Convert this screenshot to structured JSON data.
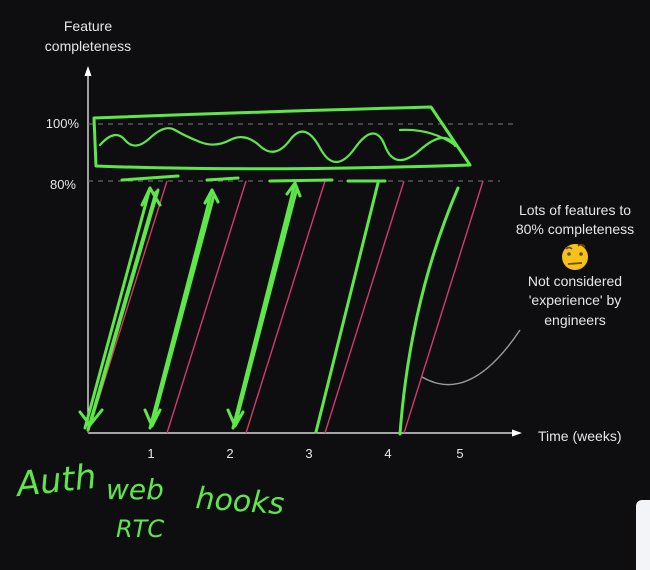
{
  "chart_data": {
    "type": "line",
    "ylabel_line1": "Feature",
    "ylabel_line2": "completeness",
    "xlabel": "Time (weeks)",
    "x_ticks": [
      "1",
      "2",
      "3",
      "4",
      "5"
    ],
    "y_ticks": [
      "80%",
      "100%"
    ],
    "xlim": [
      0,
      5.6
    ],
    "ylim": [
      0,
      130
    ],
    "reference_lines": [
      80,
      100
    ],
    "series": [
      {
        "x": [
          0,
          1
        ],
        "y": [
          0,
          80
        ]
      },
      {
        "x": [
          1,
          2
        ],
        "y": [
          0,
          80
        ]
      },
      {
        "x": [
          2,
          3
        ],
        "y": [
          0,
          80
        ]
      },
      {
        "x": [
          3,
          4
        ],
        "y": [
          0,
          80
        ]
      },
      {
        "x": [
          4,
          5
        ],
        "y": [
          0,
          80
        ]
      }
    ],
    "annotation_line1": "Lots of features to",
    "annotation_line2": "80% completeness",
    "annotation_line3": "Not considered",
    "annotation_line4": "'experience' by",
    "annotation_line5": "engineers"
  },
  "handwriting": {
    "auth": "Auth",
    "web": "web",
    "rtc": "RTC",
    "hooks": "hooks"
  },
  "colors": {
    "background": "#0e0e10",
    "axis": "#ffffff",
    "scribble": "#5fe64a",
    "series": "#d23a6a",
    "emoji": "#f6c21a"
  },
  "emoji_icon": "raised-eyebrow-emoji-icon"
}
